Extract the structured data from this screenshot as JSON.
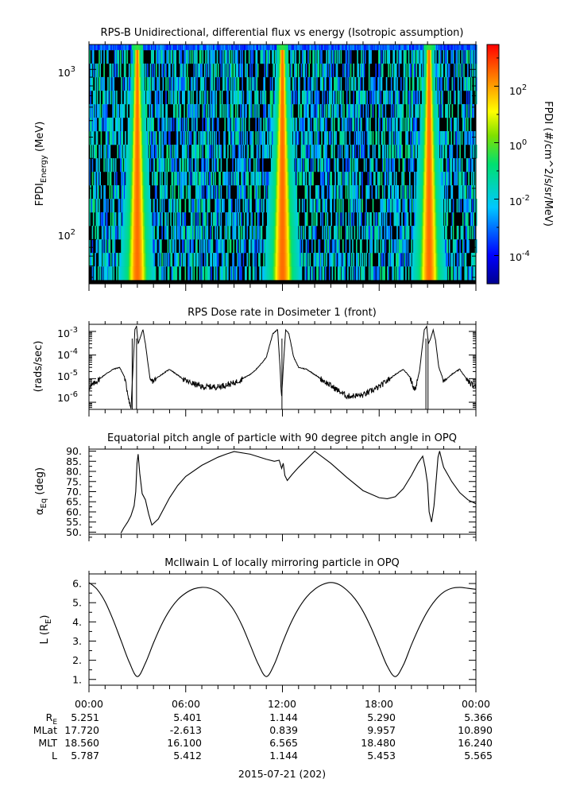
{
  "panels": [
    {
      "title": "RPS-B  Unidirectional, differential flux vs energy (Isotropic assumption)",
      "ylabel_main": "FPDI",
      "ylabel_sub": "Energy",
      "ylabel_tail": " (MeV)",
      "yticks": [
        {
          "base": "10",
          "exp": "3"
        },
        {
          "base": "10",
          "exp": "2"
        }
      ],
      "colorbar": {
        "label": "FPDI (#/cm^2/s/sr/MeV)",
        "ticks": [
          {
            "base": "10",
            "exp": "2"
          },
          {
            "base": "10",
            "exp": "0"
          },
          {
            "base": "10",
            "exp": "-2"
          },
          {
            "base": "10",
            "exp": "-4"
          }
        ]
      }
    },
    {
      "title": "RPS  Dose rate in Dosimeter 1 (front)",
      "ylabel": "(rads/sec)",
      "yticks": [
        {
          "base": "10",
          "exp": "-3"
        },
        {
          "base": "10",
          "exp": "-4"
        },
        {
          "base": "10",
          "exp": "-5"
        },
        {
          "base": "10",
          "exp": "-6"
        }
      ]
    },
    {
      "title": "Equatorial pitch angle of particle with 90 degree pitch angle in OPQ",
      "ylabel_main": "α",
      "ylabel_sub": "Eq",
      "ylabel_tail": " (deg)",
      "yticks": [
        "90.",
        "85.",
        "80.",
        "75.",
        "70.",
        "65.",
        "60.",
        "55.",
        "50."
      ]
    },
    {
      "title": "McIlwain L of locally mirroring particle in OPQ",
      "ylabel_main": "L (R",
      "ylabel_sub": "E",
      "ylabel_tail": ")",
      "yticks": [
        "6.",
        "5.",
        "4.",
        "3.",
        "2.",
        "1."
      ]
    }
  ],
  "xaxis": {
    "time_labels": [
      "00:00",
      "06:00",
      "12:00",
      "18:00",
      "00:00"
    ],
    "date_label": "2015-07-21 (202)"
  },
  "ephemeris": {
    "rows": [
      {
        "label": "R",
        "label_sub": "E",
        "values": [
          "5.251",
          "5.401",
          "1.144",
          "5.290",
          "5.366"
        ]
      },
      {
        "label": "MLat",
        "label_sub": "",
        "values": [
          "17.720",
          "-2.613",
          "0.839",
          "9.957",
          "10.890"
        ]
      },
      {
        "label": "MLT",
        "label_sub": "",
        "values": [
          "18.560",
          "16.100",
          "6.565",
          "18.480",
          "16.240"
        ]
      },
      {
        "label": "L",
        "label_sub": "",
        "values": [
          "5.787",
          "5.412",
          "1.144",
          "5.453",
          "5.565"
        ]
      }
    ]
  },
  "chart_data": [
    {
      "type": "heatmap",
      "title": "RPS-B  Unidirectional, differential flux vs energy (Isotropic assumption)",
      "xlabel": "",
      "ylabel": "FPDI Energy (MeV)",
      "x_range_hours": [
        0,
        24
      ],
      "y_range_MeV": [
        55,
        1400
      ],
      "y_scale": "log",
      "color_scale": "log",
      "color_range": [
        1e-05,
        3000
      ],
      "colorbar_label": "FPDI (#/cm^2/s/sr/MeV)",
      "energy_channels": 17,
      "hot_bands_center_hours": [
        3.0,
        12.0,
        21.1
      ],
      "peak_flux_approx": 300
    },
    {
      "type": "line",
      "title": "RPS  Dose rate in Dosimeter 1 (front)",
      "xlabel": "",
      "ylabel": "(rads/sec)",
      "y_scale": "log",
      "ylim": [
        5e-07,
        0.002
      ],
      "x": [
        0,
        0.5,
        1.0,
        1.5,
        1.9,
        2.2,
        2.4,
        2.6,
        2.75,
        2.85,
        2.95,
        3.05,
        3.2,
        3.35,
        3.5,
        3.8,
        4.0,
        4.3,
        5.0,
        6.0,
        7.0,
        8.0,
        9.0,
        10.0,
        10.5,
        11.0,
        11.4,
        11.7,
        11.85,
        11.95,
        12.05,
        12.2,
        12.4,
        12.7,
        13.0,
        13.5,
        14.0,
        15.0,
        16.0,
        17.0,
        18.0,
        19.0,
        19.5,
        19.9,
        20.2,
        20.5,
        20.8,
        20.95,
        21.05,
        21.2,
        21.35,
        21.5,
        21.7,
        22.0,
        22.5,
        23.0,
        23.5,
        24.0
      ],
      "y": [
        4e-06,
        8e-06,
        1.5e-05,
        2.5e-05,
        3e-05,
        1.2e-05,
        2.5e-06,
        5e-07,
        5e-05,
        0.0012,
        0.0017,
        0.0003,
        0.0006,
        0.0012,
        0.0003,
        8e-06,
        8e-06,
        1.2e-05,
        2.5e-05,
        8e-06,
        4.5e-06,
        4.5e-06,
        6.5e-06,
        1.5e-05,
        3e-05,
        8e-05,
        0.0008,
        0.0012,
        3e-05,
        1.5e-06,
        3e-05,
        0.0012,
        0.0008,
        8e-05,
        3e-05,
        2.5e-05,
        1.5e-05,
        5e-06,
        1.8e-06,
        2e-06,
        4.5e-06,
        1.5e-05,
        2.5e-05,
        1.2e-05,
        3e-06,
        2e-05,
        0.0012,
        0.0016,
        0.0003,
        0.0005,
        0.0012,
        0.0004,
        3e-05,
        8e-06,
        1.5e-05,
        2.5e-05,
        8e-06,
        4e-06
      ]
    },
    {
      "type": "line",
      "title": "Equatorial pitch angle of particle with 90 degree pitch angle in OPQ",
      "xlabel": "",
      "ylabel": "αEq (deg)",
      "ylim": [
        49,
        91
      ],
      "x": [
        1.98,
        2.15,
        2.4,
        2.6,
        2.8,
        2.9,
        2.98,
        3.05,
        3.15,
        3.3,
        3.5,
        3.7,
        3.9,
        4.3,
        5.0,
        5.5,
        6.0,
        7.0,
        8.0,
        8.5,
        9.0,
        10.0,
        11.0,
        11.5,
        11.8,
        11.95,
        12.05,
        12.15,
        12.3,
        12.6,
        13.0,
        13.5,
        14.0,
        15.0,
        16.0,
        17.0,
        18.0,
        18.5,
        19.0,
        19.5,
        20.0,
        20.4,
        20.7,
        20.85,
        21.0,
        21.1,
        21.25,
        21.4,
        21.55,
        21.65,
        21.75,
        21.9,
        22.0,
        22.5,
        23.0,
        23.5,
        24.0
      ],
      "y": [
        49.5,
        52.0,
        55.0,
        58.0,
        63.0,
        70.0,
        84.0,
        88.5,
        79.0,
        69.0,
        66.0,
        59.0,
        53.5,
        56.5,
        67.0,
        73.0,
        77.5,
        83.0,
        87.0,
        88.5,
        89.8,
        88.5,
        86.0,
        85.0,
        85.5,
        81.5,
        84.0,
        78.0,
        75.5,
        78.5,
        82.0,
        86.0,
        90.0,
        84.0,
        77.0,
        70.5,
        67.0,
        66.5,
        67.5,
        71.5,
        78.0,
        84.0,
        87.5,
        82.0,
        74.0,
        60.0,
        55.0,
        63.0,
        77.0,
        87.0,
        90.0,
        85.0,
        82.0,
        75.0,
        69.5,
        66.0,
        64.0
      ]
    },
    {
      "type": "line",
      "title": "McIlwain L of locally mirroring particle in OPQ",
      "xlabel": "",
      "ylabel": "L (RE)",
      "ylim": [
        0.7,
        6.5
      ],
      "x": [
        0,
        0.5,
        1.0,
        1.5,
        2.0,
        2.5,
        3.0,
        3.5,
        4.0,
        4.5,
        5.0,
        5.5,
        6.0,
        6.5,
        7.0,
        7.5,
        8.0,
        8.5,
        9.0,
        9.5,
        10.0,
        10.5,
        11.0,
        11.5,
        12.0,
        12.5,
        13.0,
        13.5,
        14.0,
        14.5,
        15.0,
        15.5,
        16.0,
        16.5,
        17.0,
        17.5,
        18.0,
        18.5,
        19.0,
        19.5,
        20.0,
        20.5,
        21.0,
        21.5,
        22.0,
        22.5,
        23.0,
        23.5,
        24.0
      ],
      "y": [
        6.05,
        5.7,
        5.05,
        4.1,
        3.0,
        1.9,
        1.15,
        1.85,
        2.9,
        3.85,
        4.6,
        5.15,
        5.5,
        5.72,
        5.8,
        5.75,
        5.55,
        5.15,
        4.6,
        3.8,
        2.8,
        1.8,
        1.15,
        1.8,
        2.9,
        3.9,
        4.7,
        5.3,
        5.7,
        5.95,
        6.05,
        5.95,
        5.65,
        5.2,
        4.55,
        3.7,
        2.7,
        1.7,
        1.15,
        1.75,
        2.8,
        3.75,
        4.55,
        5.15,
        5.55,
        5.75,
        5.8,
        5.75,
        5.7
      ]
    }
  ]
}
